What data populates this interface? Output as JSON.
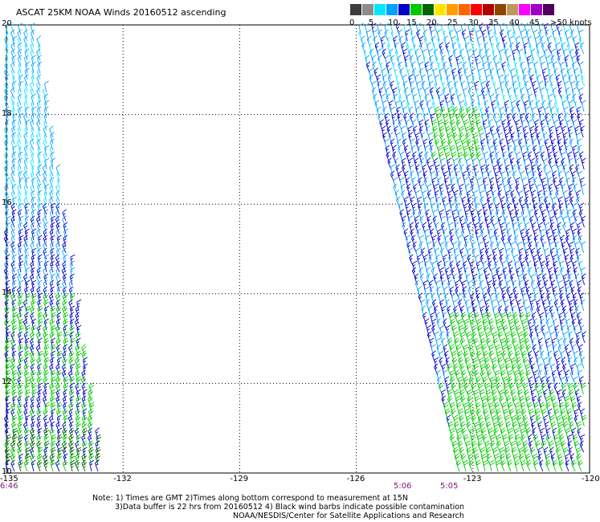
{
  "title": "ASCAT 25KM NOAA Winds 20160512 ascending",
  "colorbar": {
    "labels": [
      "0",
      "5",
      "10",
      "15",
      "20",
      "25",
      "30",
      "35",
      "40",
      "45",
      ">50 knots"
    ],
    "colors": [
      "#3c3c3c",
      "#8c8c8c",
      "#00e6ff",
      "#00a0ff",
      "#0000c8",
      "#00c800",
      "#006400",
      "#ffe600",
      "#ffa000",
      "#ff6400",
      "#ff0000",
      "#b40000",
      "#8c4600",
      "#c0965a",
      "#ff00ff",
      "#a000c8",
      "#50005a"
    ]
  },
  "map": {
    "lat_labels": [
      "20",
      "18",
      "16",
      "14",
      "12",
      "10"
    ],
    "lon_labels": [
      "-135",
      "-132",
      "-129",
      "-126",
      "-123",
      "-120"
    ],
    "time_labels": [
      "6:46",
      "5:06",
      "5:05"
    ],
    "lat_range": [
      10,
      20
    ],
    "lon_range": [
      -135,
      -120
    ],
    "grid_lons": [
      -132,
      -129,
      -126,
      -123
    ],
    "grid_lats": [
      12,
      14,
      16,
      18
    ]
  },
  "wind_barbs": {
    "swaths": [
      {
        "name": "west",
        "speed_bands": [
          {
            "lat_range": [
              18,
              20
            ],
            "knots": 10
          },
          {
            "lat_range": [
              16,
              18
            ],
            "knots": 10
          },
          {
            "lat_range": [
              14,
              16
            ],
            "knots": 15
          },
          {
            "lat_range": [
              12,
              14
            ],
            "knots": 20
          },
          {
            "lat_range": [
              10,
              12
            ],
            "knots": 20
          }
        ]
      },
      {
        "name": "east",
        "speed_bands": [
          {
            "lat_range": [
              18,
              20
            ],
            "knots": 12
          },
          {
            "lat_range": [
              14,
              18
            ],
            "knots": 15
          },
          {
            "lat_range": [
              12,
              14
            ],
            "knots": 15
          },
          {
            "lat_range": [
              10,
              12
            ],
            "knots": 20
          }
        ]
      }
    ],
    "direction": "northeasterly"
  },
  "notes": {
    "line1": "Note: 1) Times are GMT 2)Times along bottom correspond to measurement at 15N",
    "line2": "3)Data buffer is 22 hrs from 20160512 4) Black wind barbs indicate possible contamination",
    "line3": "NOAA/NESDIS/Center for Satellite Applications and Research"
  }
}
